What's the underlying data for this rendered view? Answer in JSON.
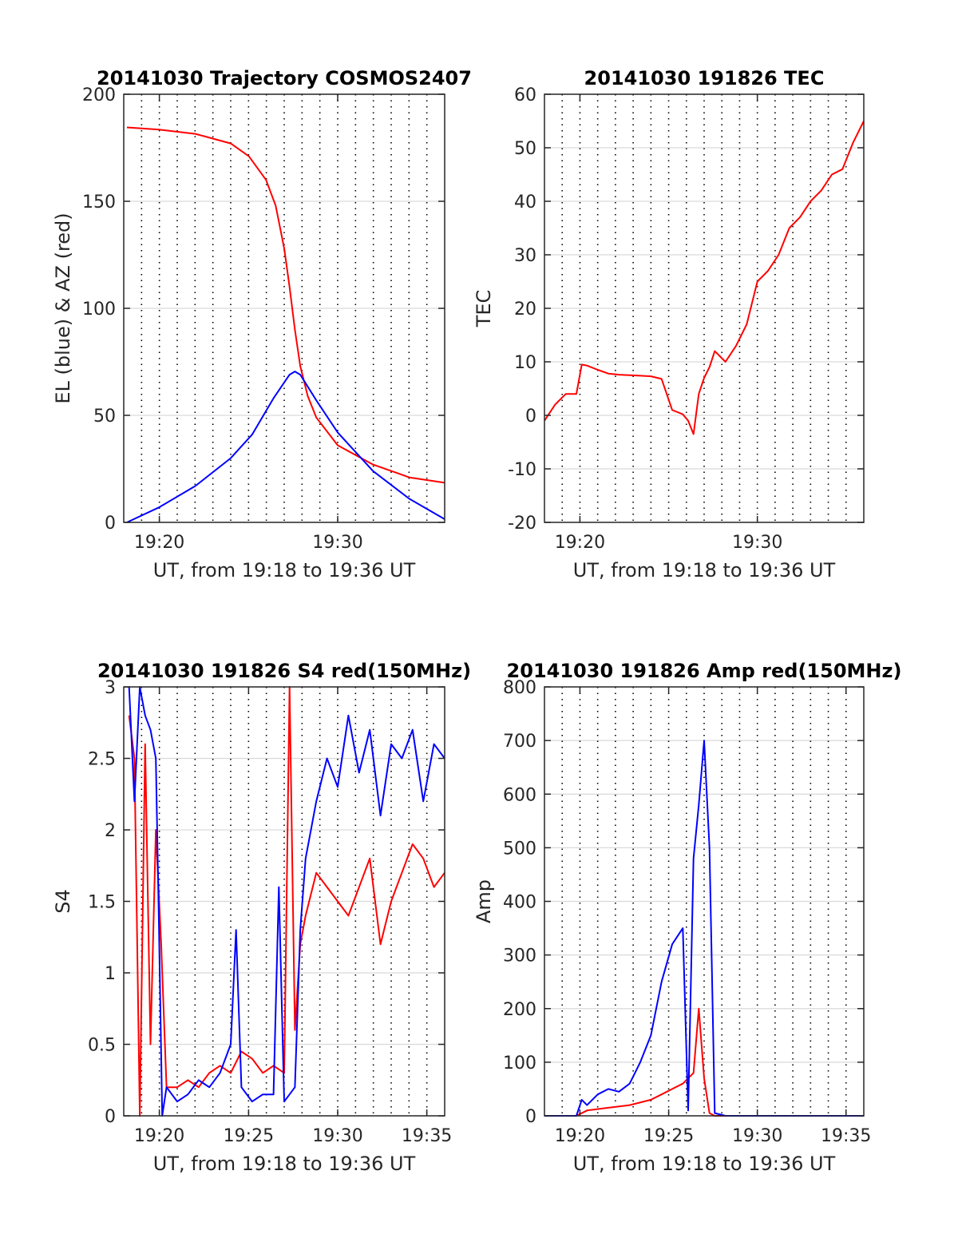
{
  "figure": {
    "colors": {
      "red": "#ff0000",
      "blue": "#0000ff",
      "grid": "#d9d9d9",
      "axis": "#262626"
    }
  },
  "chart_data": [
    {
      "type": "line",
      "title": "20141030 Trajectory COSMOS2407",
      "xlabel": "UT, from 19:18 to 19:36 UT",
      "ylabel": "EL (blue) & AZ (red)",
      "xlim": [
        19.3,
        19.6
      ],
      "ylim": [
        0,
        200
      ],
      "yticks": [
        0,
        50,
        100,
        150,
        200
      ],
      "xticks": [
        {
          "v": 19.3333,
          "label": "19:20"
        },
        {
          "v": 19.5,
          "label": "19:30"
        }
      ],
      "series": [
        {
          "color": "#ff0000",
          "x": [
            19.303,
            19.333,
            19.367,
            19.4,
            19.417,
            19.433,
            19.442,
            19.45,
            19.455,
            19.46,
            19.465,
            19.472,
            19.48,
            19.5,
            19.533,
            19.567,
            19.6
          ],
          "y": [
            184.5,
            183.5,
            181.5,
            177,
            171,
            160,
            148,
            128,
            110,
            90,
            73,
            59,
            49,
            36,
            27,
            21,
            18.5
          ]
        },
        {
          "color": "#0000ff",
          "x": [
            19.303,
            19.333,
            19.367,
            19.4,
            19.42,
            19.44,
            19.455,
            19.46,
            19.465,
            19.48,
            19.5,
            19.533,
            19.567,
            19.6
          ],
          "y": [
            0,
            7,
            17,
            30,
            41,
            58,
            69,
            70.5,
            69,
            57,
            42,
            24,
            11,
            1.5
          ]
        }
      ]
    },
    {
      "type": "line",
      "title": "20141030 191826 TEC",
      "xlabel": "UT, from 19:18 to 19:36 UT",
      "ylabel": "TEC",
      "xlim": [
        19.3,
        19.6
      ],
      "ylim": [
        -20,
        60
      ],
      "yticks": [
        -20,
        -10,
        0,
        10,
        20,
        30,
        40,
        50,
        60
      ],
      "xticks": [
        {
          "v": 19.3333,
          "label": "19:20"
        },
        {
          "v": 19.5,
          "label": "19:30"
        }
      ],
      "series": [
        {
          "color": "#ff0000",
          "x": [
            19.3,
            19.31,
            19.32,
            19.33,
            19.335,
            19.34,
            19.35,
            19.36,
            19.37,
            19.38,
            19.39,
            19.4,
            19.41,
            19.42,
            19.425,
            19.43,
            19.435,
            19.44,
            19.445,
            19.45,
            19.455,
            19.46,
            19.47,
            19.48,
            19.49,
            19.5,
            19.51,
            19.52,
            19.53,
            19.54,
            19.55,
            19.56,
            19.57,
            19.58,
            19.59,
            19.6
          ],
          "y": [
            -1,
            2,
            4,
            4,
            9.5,
            9.3,
            8.5,
            7.8,
            7.6,
            7.5,
            7.4,
            7.3,
            6.8,
            1.0,
            0.6,
            0.2,
            -1,
            -3.5,
            4,
            7,
            9,
            12,
            10,
            13,
            17,
            25,
            27,
            30,
            35,
            37,
            40,
            42,
            45,
            46,
            51,
            55
          ]
        }
      ]
    },
    {
      "type": "line",
      "title": "20141030 191826 S4 red(150MHz)",
      "xlabel": "UT, from 19:18 to 19:36 UT",
      "ylabel": "S4",
      "xlim": [
        19.3,
        19.6
      ],
      "ylim": [
        0,
        3
      ],
      "yticks": [
        0,
        0.5,
        1,
        1.5,
        2,
        2.5,
        3
      ],
      "ytick_labels": [
        "0",
        "0.5",
        "1",
        "1.5",
        "2",
        "2.5",
        "3"
      ],
      "xticks": [
        {
          "v": 19.3333,
          "label": "19:20"
        },
        {
          "v": 19.4167,
          "label": "19:25"
        },
        {
          "v": 19.5,
          "label": "19:30"
        },
        {
          "v": 19.5833,
          "label": "19:35"
        }
      ],
      "series": [
        {
          "color": "#ff0000",
          "x": [
            19.305,
            19.31,
            19.315,
            19.32,
            19.325,
            19.33,
            19.335,
            19.34,
            19.35,
            19.36,
            19.37,
            19.38,
            19.39,
            19.4,
            19.41,
            19.42,
            19.43,
            19.44,
            19.45,
            19.455,
            19.46,
            19.465,
            19.47,
            19.48,
            19.49,
            19.5,
            19.51,
            19.52,
            19.53,
            19.54,
            19.55,
            19.56,
            19.57,
            19.58,
            19.59,
            19.6
          ],
          "y": [
            2.8,
            2.5,
            0,
            2.6,
            0.5,
            2.0,
            1.2,
            0.2,
            0.2,
            0.25,
            0.2,
            0.3,
            0.35,
            0.3,
            0.45,
            0.4,
            0.3,
            0.35,
            0.3,
            3.0,
            0.6,
            1.2,
            1.4,
            1.7,
            1.6,
            1.5,
            1.4,
            1.6,
            1.8,
            1.2,
            1.5,
            1.7,
            1.9,
            1.8,
            1.6,
            1.7
          ]
        },
        {
          "color": "#0000ff",
          "x": [
            19.305,
            19.31,
            19.315,
            19.32,
            19.325,
            19.33,
            19.333,
            19.336,
            19.34,
            19.35,
            19.36,
            19.37,
            19.38,
            19.39,
            19.4,
            19.405,
            19.41,
            19.42,
            19.43,
            19.44,
            19.445,
            19.45,
            19.455,
            19.46,
            19.465,
            19.47,
            19.48,
            19.49,
            19.5,
            19.51,
            19.52,
            19.53,
            19.54,
            19.55,
            19.56,
            19.57,
            19.58,
            19.59,
            19.6
          ],
          "y": [
            3.0,
            2.2,
            3.0,
            2.8,
            2.7,
            2.5,
            1.3,
            0.0,
            0.2,
            0.1,
            0.15,
            0.25,
            0.2,
            0.3,
            0.5,
            1.3,
            0.2,
            0.1,
            0.15,
            0.15,
            1.6,
            0.1,
            0.15,
            0.2,
            1.3,
            1.8,
            2.2,
            2.5,
            2.3,
            2.8,
            2.4,
            2.7,
            2.1,
            2.6,
            2.5,
            2.7,
            2.2,
            2.6,
            2.5
          ]
        }
      ]
    },
    {
      "type": "line",
      "title": "20141030 191826 Amp red(150MHz)",
      "xlabel": "UT, from 19:18 to 19:36 UT",
      "ylabel": "Amp",
      "xlim": [
        19.3,
        19.6
      ],
      "ylim": [
        0,
        800
      ],
      "yticks": [
        0,
        100,
        200,
        300,
        400,
        500,
        600,
        700,
        800
      ],
      "xticks": [
        {
          "v": 19.3333,
          "label": "19:20"
        },
        {
          "v": 19.4167,
          "label": "19:25"
        },
        {
          "v": 19.5,
          "label": "19:30"
        },
        {
          "v": 19.5833,
          "label": "19:35"
        }
      ],
      "series": [
        {
          "color": "#ff0000",
          "x": [
            19.3,
            19.33,
            19.34,
            19.36,
            19.38,
            19.4,
            19.41,
            19.42,
            19.43,
            19.44,
            19.445,
            19.45,
            19.455,
            19.46,
            19.47,
            19.5,
            19.6
          ],
          "y": [
            0,
            0,
            10,
            15,
            20,
            30,
            40,
            50,
            60,
            80,
            200,
            70,
            5,
            0,
            0,
            0,
            0
          ]
        },
        {
          "color": "#0000ff",
          "x": [
            19.3,
            19.33,
            19.335,
            19.34,
            19.35,
            19.36,
            19.37,
            19.38,
            19.39,
            19.4,
            19.41,
            19.42,
            19.43,
            19.435,
            19.44,
            19.445,
            19.45,
            19.455,
            19.46,
            19.47,
            19.5,
            19.6
          ],
          "y": [
            0,
            0,
            30,
            20,
            40,
            50,
            45,
            60,
            100,
            150,
            250,
            320,
            350,
            10,
            480,
            580,
            700,
            500,
            5,
            0,
            0,
            0
          ]
        }
      ]
    }
  ]
}
